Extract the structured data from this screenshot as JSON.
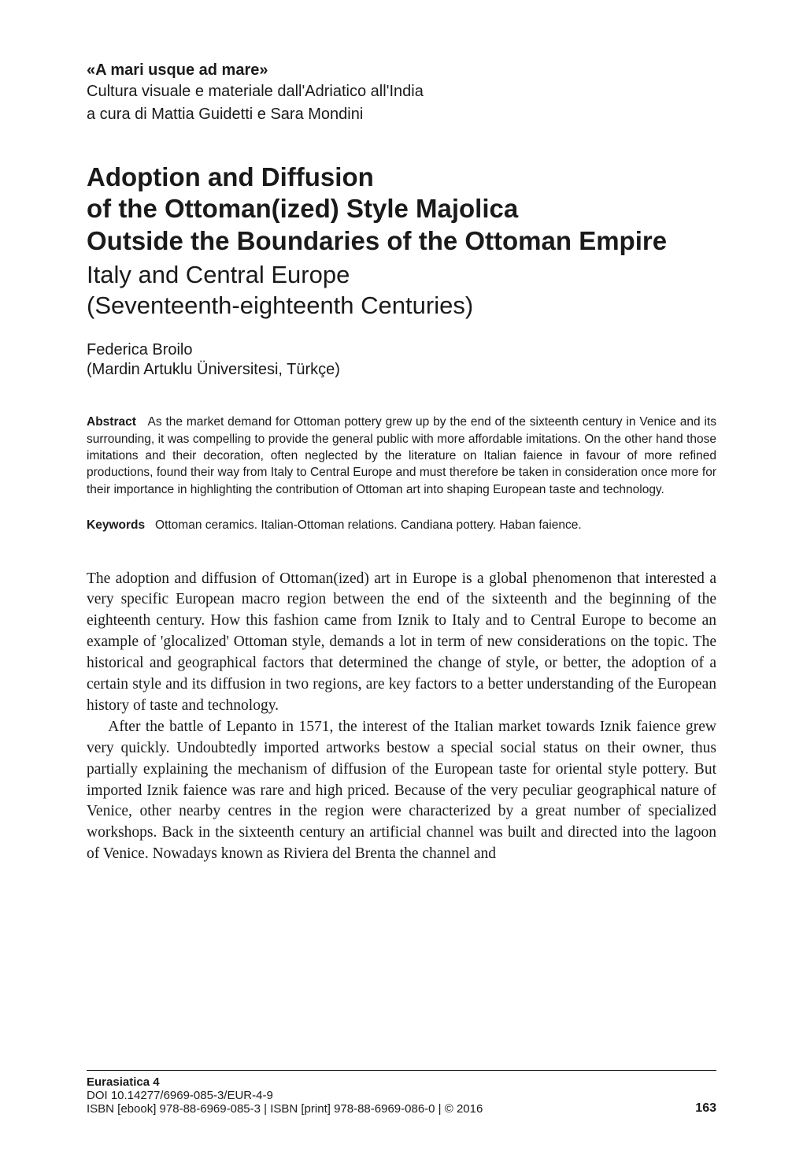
{
  "header": {
    "series_title": "«A mari usque ad mare»",
    "series_subtitle": "Cultura visuale e materiale dall'Adriatico all'India",
    "editors": "a cura di Mattia Guidetti e Sara Mondini"
  },
  "title": {
    "line1": "Adoption and Diffusion",
    "line2": "of the Ottoman(ized) Style Majolica",
    "line3": "Outside the Boundaries of the Ottoman Empire",
    "subtitle_line1": "Italy and Central Europe",
    "subtitle_line2": "(Seventeenth-eighteenth Centuries)"
  },
  "author": {
    "name": "Federica Broilo",
    "affiliation": "(Mardin Artuklu Üniversitesi, Türkçe)"
  },
  "abstract": {
    "label": "Abstract",
    "text": "As the market demand for Ottoman pottery grew up by the end of the sixteenth century in Venice and its surrounding, it was compelling to provide the general public with more affordable imitations. On the other hand those imitations and their decoration, often neglected by the literature on Italian faience in favour of more refined productions, found their way from Italy to Central Europe and must therefore be taken in consideration once more for their importance in highlighting the contribution of Ottoman art into shaping European taste and technology."
  },
  "keywords": {
    "label": "Keywords",
    "text": "Ottoman ceramics. Italian-Ottoman relations. Candiana pottery. Haban faience."
  },
  "body": {
    "p1": "The adoption and diffusion of Ottoman(ized) art in Europe is a global phenomenon that interested a very specific European macro region between the end of the sixteenth and the beginning of the eighteenth century. How this fashion came from Iznik to Italy and to Central Europe to become an example of 'glocalized' Ottoman style, demands a lot in term of new considerations on the topic. The historical and geographical factors that determined the change of style, or better, the adoption of a certain style and its diffusion in two regions, are key factors to a better understanding of the European history of taste and technology.",
    "p2": "After the battle of Lepanto in 1571, the interest of the Italian market towards Iznik faience grew very quickly. Undoubtedly imported artworks bestow a special social status on their owner, thus partially explaining the mechanism of diffusion of the European taste for oriental style pottery. But imported Iznik faience was rare and high priced. Because of the very peculiar geographical nature of Venice, other nearby centres in the region were characterized by a great number of specialized workshops. Back in the sixteenth century an artificial channel was built and directed into the lagoon of Venice. Nowadays known as Riviera del Brenta the channel and"
  },
  "footer": {
    "series": "Eurasiatica 4",
    "doi": "DOI 10.14277/6969-085-3/EUR-4-9",
    "isbn": "ISBN [ebook] 978-88-6969-085-3 | ISBN [print] 978-88-6969-086-0 | © 2016",
    "page_number": "163"
  }
}
